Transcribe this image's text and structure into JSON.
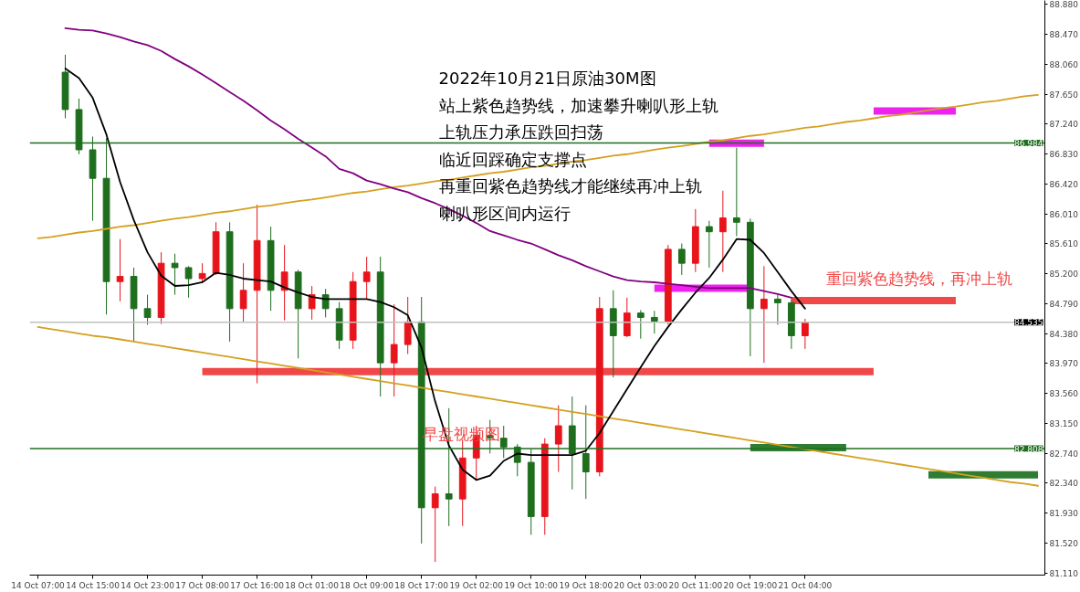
{
  "chart_data": {
    "type": "candlestick",
    "title": "2022年10月21日原油30M图",
    "annotations": [
      "站上紫色趋势线，加速攀升喇叭形上轨",
      "上轨压力承压跌回扫荡",
      "临近回踩确定支撑点",
      "再重回紫色趋势线才能继续再冲上轨",
      "喇叭形区间内运行",
      "重回紫色趋势线，再冲上轨",
      "早盘视频图"
    ],
    "categories": [
      "14 Oct 07:00",
      null,
      null,
      null,
      "14 Oct 15:00",
      null,
      null,
      null,
      "14 Oct 23:00",
      null,
      null,
      null,
      "17 Oct 08:00",
      null,
      null,
      null,
      "17 Oct 16:00",
      null,
      null,
      null,
      "18 Oct 01:00",
      null,
      null,
      null,
      "18 Oct 09:00",
      null,
      null,
      null,
      "18 Oct 17:00",
      null,
      null,
      null,
      "19 Oct 02:00",
      null,
      null,
      null,
      "19 Oct 10:00",
      null,
      null,
      null,
      "19 Oct 18:00",
      null,
      null,
      null,
      "20 Oct 03:00",
      null,
      null,
      null,
      "20 Oct 11:00",
      null,
      null,
      null,
      "20 Oct 19:00",
      null,
      null,
      null,
      "21 Oct 04:00",
      null,
      null,
      null,
      null,
      null,
      null,
      null,
      null,
      null,
      null,
      null,
      null,
      null,
      null,
      null,
      null,
      null
    ],
    "ylim": [
      81.08,
      88.93
    ],
    "yticks": [
      {
        "value": 88.88,
        "label": "88.880"
      },
      {
        "value": 88.47,
        "label": "88.470"
      },
      {
        "value": 88.06,
        "label": "88.060"
      },
      {
        "value": 87.65,
        "label": "87.650"
      },
      {
        "value": 87.24,
        "label": "87.240"
      },
      {
        "value": 86.83,
        "label": "86.830"
      },
      {
        "value": 86.42,
        "label": "86.420"
      },
      {
        "value": 86.01,
        "label": "86.010"
      },
      {
        "value": 85.61,
        "label": "85.610"
      },
      {
        "value": 85.2,
        "label": "85.200"
      },
      {
        "value": 84.79,
        "label": "84.790"
      },
      {
        "value": 84.38,
        "label": "84.380"
      },
      {
        "value": 83.97,
        "label": "83.970"
      },
      {
        "value": 83.56,
        "label": "83.560"
      },
      {
        "value": 83.15,
        "label": "83.150"
      },
      {
        "value": 82.74,
        "label": "82.740"
      },
      {
        "value": 82.34,
        "label": "82.340"
      },
      {
        "value": 81.93,
        "label": "81.930"
      },
      {
        "value": 81.52,
        "label": "81.520"
      },
      {
        "value": 81.11,
        "label": "81.110"
      }
    ],
    "ref_lines": [
      {
        "axis": "y",
        "value": 86.984,
        "label": "86.984",
        "color": "#1e6e1e"
      },
      {
        "axis": "y",
        "value": 82.808,
        "label": "82.808",
        "color": "#1e6e1e"
      },
      {
        "axis": "y",
        "value": 84.535,
        "label": "84.535",
        "color": "#c0c0c0"
      }
    ],
    "series": [
      {
        "type": "line",
        "color": "#d4a020",
        "values": [
          85.68,
          85.7,
          85.73,
          85.76,
          85.78,
          85.81,
          85.84,
          85.86,
          85.89,
          85.92,
          85.95,
          85.97,
          86.0,
          86.03,
          86.05,
          86.08,
          86.11,
          86.13,
          86.16,
          86.19,
          86.21,
          86.24,
          86.27,
          86.3,
          86.32,
          86.35,
          86.38,
          86.4,
          86.43,
          86.46,
          86.48,
          86.51,
          86.54,
          86.57,
          86.59,
          86.62,
          86.65,
          86.67,
          86.7,
          86.73,
          86.75,
          86.78,
          86.81,
          86.83,
          86.86,
          86.89,
          86.92,
          86.94,
          86.97,
          87.0,
          87.02,
          87.05,
          87.08,
          87.1,
          87.13,
          87.16,
          87.19,
          87.21,
          87.24,
          87.27,
          87.29,
          87.32,
          87.35,
          87.37,
          87.4,
          87.43,
          87.46,
          87.48,
          87.51,
          87.54,
          87.56,
          87.59,
          87.62,
          87.64
        ]
      },
      {
        "type": "line",
        "color": "#d4a020",
        "values": [
          84.47,
          84.44,
          84.41,
          84.38,
          84.35,
          84.33,
          84.3,
          84.27,
          84.24,
          84.21,
          84.18,
          84.15,
          84.12,
          84.09,
          84.06,
          84.03,
          84.0,
          83.97,
          83.94,
          83.91,
          83.88,
          83.85,
          83.82,
          83.79,
          83.76,
          83.73,
          83.7,
          83.67,
          83.64,
          83.61,
          83.58,
          83.55,
          83.52,
          83.49,
          83.46,
          83.43,
          83.4,
          83.37,
          83.34,
          83.31,
          83.28,
          83.25,
          83.22,
          83.19,
          83.16,
          83.13,
          83.1,
          83.07,
          83.04,
          83.01,
          82.98,
          82.95,
          82.92,
          82.89,
          82.86,
          82.83,
          82.8,
          82.77,
          82.74,
          82.71,
          82.68,
          82.65,
          82.62,
          82.59,
          82.56,
          82.53,
          82.5,
          82.47,
          82.44,
          82.41,
          82.38,
          82.35,
          82.33,
          82.3
        ]
      },
      {
        "type": "line",
        "color": "#800080",
        "values": [
          null,
          null,
          88.55,
          88.53,
          88.52,
          88.48,
          88.43,
          88.37,
          88.32,
          88.24,
          88.13,
          88.03,
          87.92,
          87.8,
          87.68,
          87.56,
          87.43,
          87.29,
          87.17,
          87.04,
          86.92,
          86.8,
          86.63,
          86.57,
          86.47,
          86.42,
          86.36,
          86.31,
          86.23,
          86.16,
          86.08,
          85.99,
          85.89,
          85.78,
          85.72,
          85.66,
          85.61,
          85.53,
          85.45,
          85.38,
          85.3,
          85.23,
          85.16,
          85.11,
          85.09,
          85.08,
          85.06,
          85.04,
          85.02,
          85.0,
          85.0,
          85.0,
          85.0,
          84.96,
          84.92,
          84.87,
          null,
          null,
          null,
          null,
          null,
          null,
          null,
          null,
          null,
          null,
          null,
          null,
          null,
          null,
          null,
          null,
          null,
          null
        ]
      },
      {
        "type": "line",
        "color": "#000000",
        "values": [
          null,
          null,
          88.0,
          87.87,
          87.6,
          87.1,
          86.45,
          85.93,
          85.49,
          85.17,
          85.03,
          85.04,
          85.08,
          85.21,
          85.18,
          85.13,
          85.11,
          85.09,
          85.01,
          84.94,
          84.88,
          84.85,
          84.85,
          84.85,
          84.85,
          84.81,
          84.74,
          84.63,
          84.19,
          83.45,
          82.85,
          82.52,
          82.38,
          82.44,
          82.64,
          82.74,
          82.72,
          82.72,
          82.72,
          82.72,
          82.78,
          83.02,
          83.32,
          83.62,
          83.92,
          84.21,
          84.47,
          84.71,
          84.94,
          85.14,
          85.39,
          85.67,
          85.66,
          85.48,
          85.22,
          84.96,
          84.72,
          null,
          null,
          null,
          null,
          null,
          null,
          null,
          null,
          null,
          null,
          null,
          null,
          null,
          null,
          null,
          null,
          null
        ]
      },
      {
        "type": "line",
        "color": "#ee22ee",
        "values": [
          null,
          null,
          null,
          null,
          null,
          null,
          null,
          null,
          null,
          null,
          null,
          null,
          null,
          null,
          null,
          null,
          null,
          null,
          null,
          null,
          null,
          null,
          null,
          null,
          null,
          null,
          null,
          null,
          null,
          null,
          null,
          null,
          null,
          null,
          null,
          null,
          null,
          null,
          null,
          null,
          null,
          null,
          null,
          null,
          null,
          null,
          null,
          null,
          null,
          86.98,
          86.98,
          86.98,
          86.98,
          86.98,
          null,
          null,
          null,
          null,
          null,
          null,
          null,
          null,
          null,
          null,
          null,
          null,
          null,
          null,
          null,
          null,
          null,
          null,
          null,
          null
        ]
      },
      {
        "type": "line",
        "color": "#ee22ee",
        "values": [
          null,
          null,
          null,
          null,
          null,
          null,
          null,
          null,
          null,
          null,
          null,
          null,
          null,
          null,
          null,
          null,
          null,
          null,
          null,
          null,
          null,
          null,
          null,
          null,
          null,
          null,
          null,
          null,
          null,
          null,
          null,
          null,
          null,
          null,
          null,
          null,
          null,
          null,
          null,
          null,
          null,
          null,
          null,
          null,
          null,
          null,
          null,
          null,
          null,
          null,
          null,
          null,
          null,
          null,
          null,
          null,
          null,
          null,
          null,
          null,
          null,
          87.42,
          87.42,
          87.42,
          87.42,
          87.42,
          87.42,
          87.42,
          null,
          null,
          null,
          null,
          null,
          null
        ]
      },
      {
        "type": "line",
        "color": "#ee22ee",
        "values": [
          null,
          null,
          null,
          null,
          null,
          null,
          null,
          null,
          null,
          null,
          null,
          null,
          null,
          null,
          null,
          null,
          null,
          null,
          null,
          null,
          null,
          null,
          null,
          null,
          null,
          null,
          null,
          null,
          null,
          null,
          null,
          null,
          null,
          null,
          null,
          null,
          null,
          null,
          null,
          null,
          null,
          null,
          null,
          null,
          null,
          85.0,
          85.0,
          85.0,
          85.0,
          85.0,
          85.0,
          85.0,
          85.0,
          null,
          null,
          null,
          null,
          null,
          null,
          null,
          null,
          null,
          null,
          null,
          null,
          null,
          null,
          null,
          null,
          null,
          null,
          null,
          null,
          null
        ]
      },
      {
        "type": "line",
        "color": "#f04848",
        "values": [
          null,
          null,
          null,
          null,
          null,
          null,
          null,
          null,
          null,
          null,
          null,
          null,
          null,
          null,
          null,
          null,
          null,
          null,
          null,
          null,
          null,
          null,
          null,
          null,
          null,
          null,
          null,
          null,
          null,
          null,
          null,
          null,
          null,
          null,
          null,
          null,
          null,
          null,
          null,
          null,
          null,
          null,
          null,
          null,
          null,
          null,
          null,
          null,
          null,
          null,
          null,
          null,
          null,
          null,
          null,
          84.83,
          84.83,
          84.83,
          84.83,
          84.83,
          84.83,
          84.83,
          84.83,
          84.83,
          84.83,
          84.83,
          84.83,
          84.83,
          null,
          null,
          null,
          null,
          null,
          null
        ]
      },
      {
        "type": "line",
        "color": "#f04848",
        "values": [
          null,
          null,
          null,
          null,
          null,
          null,
          null,
          null,
          null,
          null,
          null,
          null,
          83.86,
          83.86,
          83.86,
          83.86,
          83.86,
          83.86,
          83.86,
          83.86,
          83.86,
          83.86,
          83.86,
          83.86,
          83.86,
          83.86,
          83.86,
          83.86,
          83.86,
          83.86,
          83.86,
          83.86,
          83.86,
          83.86,
          83.86,
          83.86,
          83.86,
          83.86,
          83.86,
          83.86,
          83.86,
          83.86,
          83.86,
          83.86,
          83.86,
          83.86,
          83.86,
          83.86,
          83.86,
          83.86,
          83.86,
          83.86,
          83.86,
          83.86,
          83.86,
          83.86,
          83.86,
          83.86,
          83.86,
          83.86,
          83.86,
          83.86,
          null,
          null,
          null,
          null,
          null,
          null,
          null,
          null,
          null,
          null,
          null,
          null
        ]
      },
      {
        "type": "line",
        "color": "#2e7d32",
        "values": [
          null,
          null,
          null,
          null,
          null,
          null,
          null,
          null,
          null,
          null,
          null,
          null,
          null,
          null,
          null,
          null,
          null,
          null,
          null,
          null,
          null,
          null,
          null,
          null,
          null,
          null,
          null,
          null,
          null,
          null,
          null,
          null,
          null,
          null,
          null,
          null,
          null,
          null,
          null,
          null,
          null,
          null,
          null,
          null,
          null,
          null,
          null,
          null,
          null,
          null,
          null,
          null,
          82.82,
          82.82,
          82.82,
          82.82,
          82.82,
          82.82,
          82.82,
          82.82,
          null,
          null,
          null,
          null,
          null,
          null,
          null,
          null,
          null,
          null,
          null,
          null,
          null,
          null
        ]
      },
      {
        "type": "line",
        "color": "#2e7d32",
        "values": [
          null,
          null,
          null,
          null,
          null,
          null,
          null,
          null,
          null,
          null,
          null,
          null,
          null,
          null,
          null,
          null,
          null,
          null,
          null,
          null,
          null,
          null,
          null,
          null,
          null,
          null,
          null,
          null,
          null,
          null,
          null,
          null,
          null,
          null,
          null,
          null,
          null,
          null,
          null,
          null,
          null,
          null,
          null,
          null,
          null,
          null,
          null,
          null,
          null,
          null,
          null,
          null,
          null,
          null,
          null,
          null,
          null,
          null,
          null,
          null,
          null,
          null,
          null,
          null,
          null,
          82.45,
          82.45,
          82.45,
          82.45,
          82.45,
          82.45,
          82.45,
          82.45,
          82.45
        ]
      },
      {
        "ohlc": [
          null,
          null,
          [
            87.95,
            88.19,
            87.32,
            87.44
          ],
          [
            87.44,
            87.59,
            86.83,
            86.89
          ],
          [
            86.89,
            87.07,
            85.92,
            86.5
          ],
          [
            86.5,
            87.05,
            84.64,
            85.09
          ],
          [
            85.09,
            85.67,
            84.82,
            85.16
          ],
          [
            85.16,
            85.28,
            84.27,
            84.72
          ],
          [
            84.72,
            84.91,
            84.5,
            84.6
          ],
          [
            84.6,
            85.49,
            84.51,
            85.34
          ],
          [
            85.34,
            85.47,
            84.91,
            85.28
          ],
          [
            85.28,
            85.3,
            84.87,
            85.13
          ],
          [
            85.13,
            85.34,
            85.07,
            85.2
          ],
          [
            85.2,
            85.9,
            85.18,
            85.77
          ],
          [
            85.77,
            85.9,
            84.27,
            84.72
          ],
          [
            84.72,
            85.34,
            84.54,
            84.97
          ],
          [
            84.97,
            86.14,
            83.7,
            85.65
          ],
          [
            85.65,
            85.84,
            84.69,
            84.97
          ],
          [
            84.97,
            85.59,
            84.56,
            85.22
          ],
          [
            85.22,
            85.25,
            84.04,
            84.72
          ],
          [
            84.72,
            85.03,
            84.57,
            84.91
          ],
          [
            84.91,
            84.99,
            84.6,
            84.72
          ],
          [
            84.72,
            84.81,
            84.17,
            84.29
          ],
          [
            84.29,
            85.22,
            84.17,
            85.09
          ],
          [
            85.09,
            85.43,
            84.85,
            85.22
          ],
          [
            85.22,
            85.43,
            83.52,
            83.98
          ],
          [
            83.98,
            84.78,
            83.52,
            84.23
          ],
          [
            84.23,
            84.88,
            84.1,
            84.54
          ],
          [
            84.54,
            84.88,
            81.51,
            82.0
          ],
          [
            82.0,
            82.29,
            81.26,
            82.19
          ],
          [
            82.19,
            83.36,
            81.75,
            82.12
          ],
          [
            82.12,
            82.93,
            81.75,
            82.68
          ],
          [
            82.68,
            83.12,
            82.37,
            82.99
          ],
          [
            82.99,
            83.2,
            82.74,
            82.95
          ],
          [
            82.95,
            83.12,
            82.68,
            82.83
          ],
          [
            82.83,
            82.87,
            82.43,
            82.62
          ],
          [
            82.62,
            82.8,
            81.63,
            81.88
          ],
          [
            81.88,
            82.95,
            81.63,
            82.87
          ],
          [
            82.87,
            83.4,
            82.49,
            83.12
          ],
          [
            83.12,
            83.52,
            82.25,
            82.74
          ],
          [
            82.74,
            83.4,
            82.12,
            82.49
          ],
          [
            82.49,
            84.88,
            82.43,
            84.72
          ],
          [
            84.72,
            84.97,
            83.78,
            84.35
          ],
          [
            84.35,
            84.87,
            84.33,
            84.66
          ],
          [
            84.66,
            84.7,
            84.31,
            84.6
          ],
          [
            84.6,
            84.69,
            84.38,
            84.55
          ],
          [
            84.55,
            85.59,
            84.5,
            85.53
          ],
          [
            85.53,
            85.61,
            85.18,
            85.34
          ],
          [
            85.34,
            86.08,
            85.22,
            85.84
          ],
          [
            85.84,
            85.92,
            85.28,
            85.77
          ],
          [
            85.77,
            86.33,
            85.22,
            85.96
          ],
          [
            85.96,
            86.92,
            85.71,
            85.9
          ],
          [
            85.9,
            85.95,
            84.07,
            84.72
          ],
          [
            84.72,
            85.3,
            83.98,
            84.85
          ],
          [
            84.85,
            84.91,
            84.5,
            84.8
          ],
          [
            84.8,
            84.85,
            84.17,
            84.35
          ],
          [
            84.35,
            84.58,
            84.17,
            84.53
          ],
          null,
          null,
          null,
          null,
          null,
          null,
          null,
          null,
          null,
          null,
          null,
          null,
          null,
          null,
          null,
          null,
          null
        ],
        "colors": [
          null,
          null,
          "#1e6e1e",
          "#1e6e1e",
          "#1e6e1e",
          "#1e6e1e",
          "#e8141c",
          "#1e6e1e",
          "#1e6e1e",
          "#e8141c",
          "#1e6e1e",
          "#1e6e1e",
          "#e8141c",
          "#e8141c",
          "#1e6e1e",
          "#e8141c",
          "#e8141c",
          "#1e6e1e",
          "#e8141c",
          "#1e6e1e",
          "#e8141c",
          "#1e6e1e",
          "#1e6e1e",
          "#e8141c",
          "#e8141c",
          "#1e6e1e",
          "#e8141c",
          "#e8141c",
          "#1e6e1e",
          "#e8141c",
          "#1e6e1e",
          "#e8141c",
          "#e8141c",
          "#1e6e1e",
          "#1e6e1e",
          "#1e6e1e",
          "#1e6e1e",
          "#e8141c",
          "#e8141c",
          "#1e6e1e",
          "#1e6e1e",
          "#e8141c",
          "#1e6e1e",
          "#e8141c",
          "#1e6e1e",
          "#1e6e1e",
          "#e8141c",
          "#1e6e1e",
          "#e8141c",
          "#1e6e1e",
          "#e8141c",
          "#1e6e1e",
          "#1e6e1e",
          "#e8141c",
          "#1e6e1e",
          "#1e6e1e",
          "#e8141c",
          null,
          null,
          null,
          null,
          null,
          null,
          null,
          null,
          null,
          null,
          null,
          null,
          null,
          null,
          null,
          null,
          null
        ]
      }
    ]
  }
}
